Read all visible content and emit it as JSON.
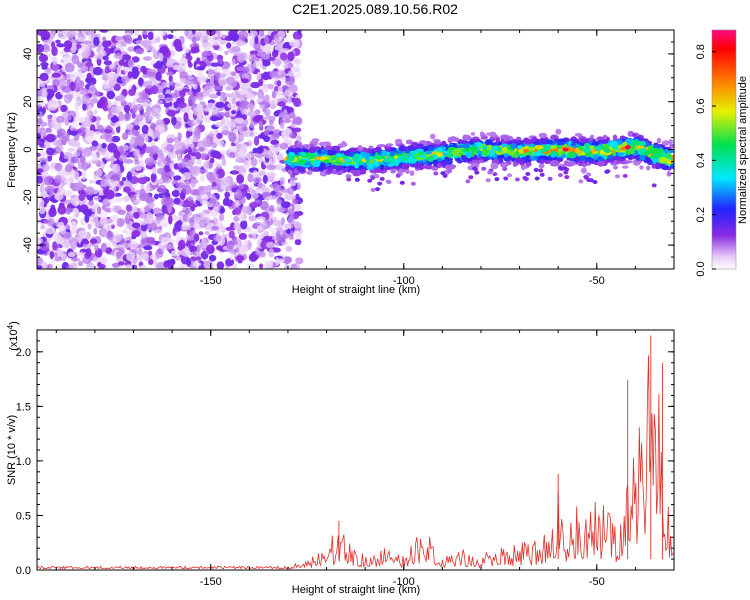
{
  "title": "C2E1.2025.089.10.56.R02",
  "colors": {
    "line": "#e0302a",
    "background": "#ffffff"
  },
  "chart_data": [
    {
      "type": "heatmap",
      "xlabel": "Height of straight line (km)",
      "ylabel": "Frequency (Hz)",
      "colorbar_label": "Normalized spectral amplitude",
      "xlim": [
        -195,
        -30
      ],
      "ylim": [
        -50,
        50
      ],
      "xticks": [
        -150,
        -100,
        -50
      ],
      "yticks": [
        -40,
        -20,
        0,
        20,
        40
      ],
      "colorbar_ticks": [
        0.0,
        0.2,
        0.4,
        0.6,
        0.8
      ],
      "colorbar_range": [
        0,
        0.88
      ],
      "regions": [
        {
          "x_range": [
            -195,
            -130
          ],
          "freq_range": [
            -50,
            50
          ],
          "amplitude_range": [
            0.0,
            0.1
          ]
        },
        {
          "x_range": [
            -130,
            -30
          ],
          "freq_center": 0,
          "freq_halfwidth": 6,
          "amplitude_range": [
            0.05,
            0.88
          ]
        }
      ],
      "signal_track": {
        "x": [
          -130,
          -120,
          -110,
          -100,
          -90,
          -80,
          -70,
          -60,
          -50,
          -40,
          -32
        ],
        "freq": [
          -4,
          -4,
          -5,
          -3,
          -2,
          0,
          -1,
          0,
          -1,
          1,
          -4
        ]
      },
      "peaks": [
        {
          "x": -58,
          "freq": 0,
          "amplitude": 0.85
        },
        {
          "x": -42,
          "freq": 1,
          "amplitude": 0.85
        }
      ]
    },
    {
      "type": "line",
      "xlabel": "Height of straight line (km)",
      "ylabel": "SNR (10 * v/v)",
      "yscale_note": "(x10",
      "yscale_exp": "4",
      "xlim": [
        -195,
        -30
      ],
      "ylim": [
        0,
        2.2
      ],
      "xticks": [
        -150,
        -100,
        -50
      ],
      "yticks": [
        0.0,
        0.5,
        1.0,
        1.5,
        2.0
      ],
      "series": [
        {
          "x": [
            -195,
            -180,
            -160,
            -140,
            -130,
            -125,
            -120,
            -117,
            -115,
            -113,
            -110,
            -105,
            -100,
            -98,
            -95,
            -90,
            -85,
            -80,
            -75,
            -70,
            -65,
            -62,
            -60,
            -58,
            -55,
            -52,
            -50,
            -48,
            -45,
            -42,
            -40,
            -38,
            -36,
            -35,
            -34,
            -33,
            -32,
            -31,
            -30
          ],
          "y": [
            0.02,
            0.02,
            0.02,
            0.03,
            0.04,
            0.1,
            0.2,
            0.45,
            0.3,
            0.25,
            0.15,
            0.2,
            0.15,
            0.25,
            0.4,
            0.15,
            0.2,
            0.15,
            0.2,
            0.25,
            0.3,
            0.35,
            0.88,
            0.5,
            0.6,
            0.55,
            0.75,
            0.6,
            0.45,
            0.9,
            1.1,
            1.6,
            2.15,
            1.95,
            1.6,
            1.85,
            0.85,
            0.5,
            0.5
          ]
        }
      ]
    }
  ]
}
